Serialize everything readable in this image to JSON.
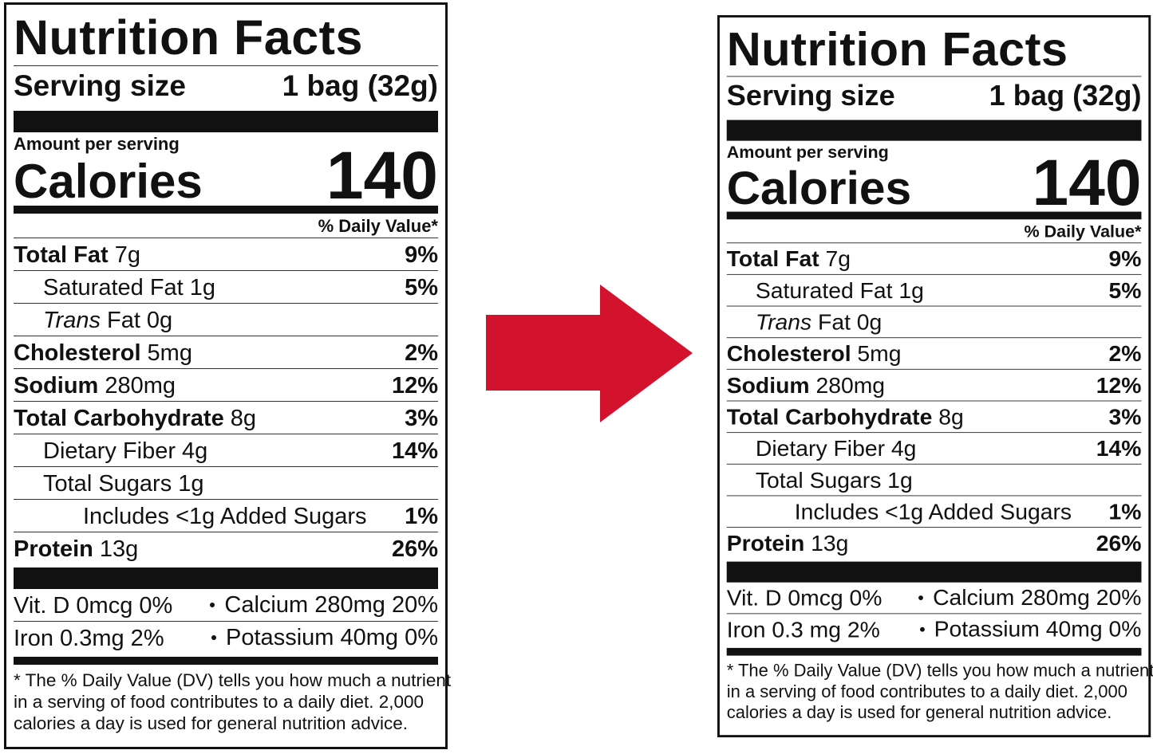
{
  "labels": [
    {
      "title": "Nutrition Facts",
      "serving_size": {
        "label": "Serving size",
        "value": "1 bag (32g)"
      },
      "amount_per_serving": "Amount per serving",
      "calories": {
        "label": "Calories",
        "value": "140"
      },
      "daily_value_header": "% Daily Value*",
      "nutrients": [
        {
          "name": "Total Fat",
          "amount": "7g",
          "dv": "9%",
          "sub": [
            {
              "name": "Saturated Fat",
              "amount": "1g",
              "dv": "5%"
            },
            {
              "name_italic": "Trans",
              "name": "Fat",
              "amount": "0g"
            }
          ]
        },
        {
          "name": "Cholesterol",
          "amount": "5mg",
          "dv": "2%"
        },
        {
          "name": "Sodium",
          "amount": "280mg",
          "dv": "12%"
        },
        {
          "name": "Total Carbohydrate",
          "amount": "8g",
          "dv": "3%",
          "sub": [
            {
              "name": "Dietary Fiber",
              "amount": "4g",
              "dv": "14%"
            },
            {
              "name": "Total Sugars",
              "amount": "1g",
              "sub": [
                {
                  "name": "Includes <1g Added Sugars",
                  "dv": "1%"
                }
              ]
            }
          ]
        },
        {
          "name": "Protein",
          "amount": "13g",
          "dv": "26%"
        }
      ],
      "vitamins": [
        [
          "Vit. D 0mcg 0%",
          "Calcium 280mg 20%"
        ],
        [
          "Iron 0.3mg 2%",
          "Potassium 40mg 0%"
        ]
      ],
      "footnote": [
        "* The % Daily Value (DV) tells you how much a nutrient",
        "in a serving of food contributes to a daily diet. 2,000",
        "calories a day is used for general nutrition advice."
      ]
    },
    {
      "title": "Nutrition Facts",
      "serving_size": {
        "label": "Serving size",
        "value": "1 bag (32g)"
      },
      "amount_per_serving": "Amount per serving",
      "calories": {
        "label": "Calories",
        "value": "140"
      },
      "daily_value_header": "% Daily Value*",
      "nutrients": [
        {
          "name": "Total Fat",
          "amount": "7g",
          "dv": "9%",
          "sub": [
            {
              "name": "Saturated Fat",
              "amount": "1g",
              "dv": "5%"
            },
            {
              "name_italic": "Trans",
              "name": "Fat",
              "amount": "0g"
            }
          ]
        },
        {
          "name": "Cholesterol",
          "amount": "5mg",
          "dv": "2%"
        },
        {
          "name": "Sodium",
          "amount": "280mg",
          "dv": "12%"
        },
        {
          "name": "Total Carbohydrate",
          "amount": "8g",
          "dv": "3%",
          "sub": [
            {
              "name": "Dietary Fiber",
              "amount": "4g",
              "dv": "14%"
            },
            {
              "name": "Total Sugars",
              "amount": "1g",
              "sub": [
                {
                  "name": "Includes <1g Added Sugars",
                  "dv": "1%"
                }
              ]
            }
          ]
        },
        {
          "name": "Protein",
          "amount": "13g",
          "dv": "26%"
        }
      ],
      "vitamins": [
        [
          "Vit. D 0mcg 0%",
          "Calcium 280mg 20%"
        ],
        [
          "Iron 0.3 mg 2%",
          "Potassium 40mg 0%"
        ]
      ],
      "footnote": [
        "* The % Daily Value (DV) tells you how much a nutrient",
        "in a serving of food contributes to a daily diet. 2,000",
        "calories a day is used for general nutrition advice."
      ]
    }
  ]
}
